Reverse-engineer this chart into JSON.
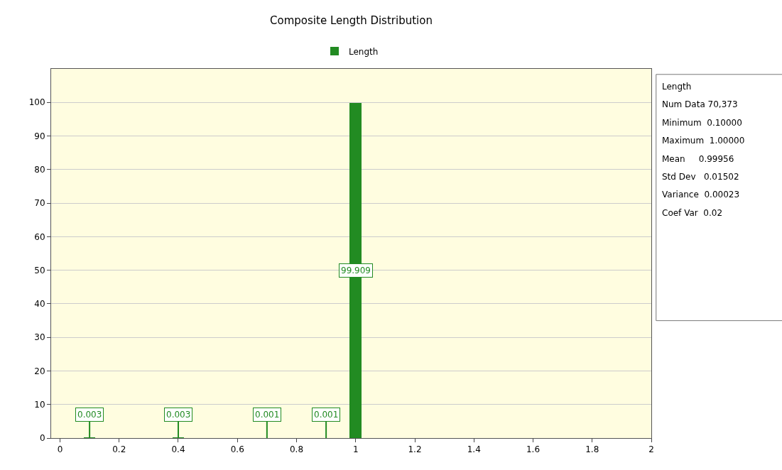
{
  "chart_data": {
    "type": "bar",
    "title": "Composite Length Distribution",
    "x": [
      0.1,
      0.4,
      0.7,
      0.9,
      1.0
    ],
    "series": [
      {
        "name": "Length",
        "color": "#228b22",
        "values": [
          0.003,
          0.003,
          0.001,
          0.001,
          99.909
        ]
      }
    ],
    "data_labels": true,
    "xlim": [
      -0.03,
      2
    ],
    "xticks": [
      0,
      0.2,
      0.4,
      0.6,
      0.8,
      1,
      1.2,
      1.4,
      1.6,
      1.8,
      2
    ],
    "ylim": [
      0,
      110
    ],
    "yticks": [
      0,
      10,
      20,
      30,
      40,
      50,
      60,
      70,
      80,
      90,
      100
    ],
    "grid": "y",
    "legend": "top",
    "annotations": [
      "Length",
      "Num Data 70,373",
      "Minimum  0.10000",
      "Maximum  1.00000",
      "Mean     0.99956",
      "Std Dev   0.01502",
      "Variance  0.00023",
      "Coef Var  0.02"
    ]
  }
}
